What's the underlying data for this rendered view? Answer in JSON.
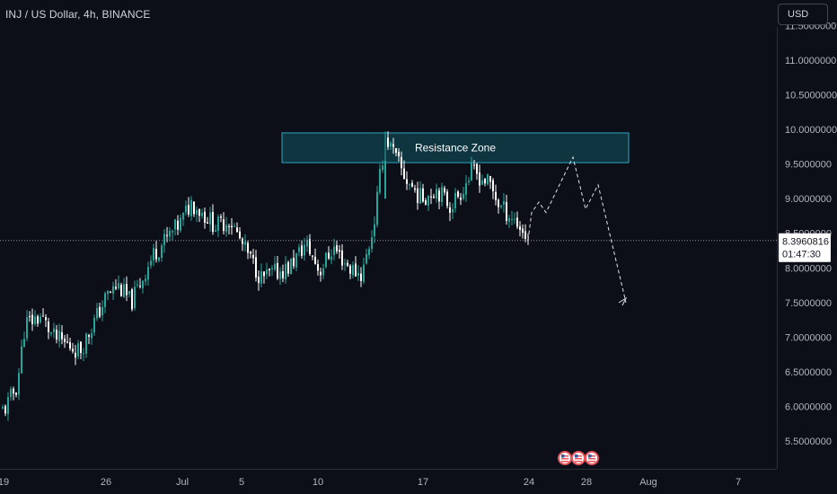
{
  "header": {
    "symbol_title": "INJ / US Dollar, 4h, BINANCE",
    "currency_label": "USD"
  },
  "price_badge": {
    "price": "8.3960816",
    "countdown": "01:47:30"
  },
  "colors": {
    "background": "#0c0e18",
    "candle_up": "#26a69a",
    "candle_down": "#ffffff",
    "zone_fill": "#0f3540",
    "zone_border": "#2aa7bf",
    "axis_text": "#b2b5be",
    "event_icon": "#e8525a"
  },
  "chart_data": {
    "type": "candlestick",
    "symbol": "INJ / US Dollar",
    "interval": "4h",
    "exchange": "BINANCE",
    "ylim": [
      5.15,
      11.5
    ],
    "y_ticks": [
      "5.5000000",
      "6.0000000",
      "6.5000000",
      "7.0000000",
      "7.5000000",
      "8.0000000",
      "8.5000000",
      "9.0000000",
      "9.5000000",
      "10.0000000",
      "10.5000000",
      "11.0000000",
      "11.5000000"
    ],
    "x_ticks": [
      "19",
      "26",
      "Jul",
      "5",
      "10",
      "17",
      "24",
      "28",
      "Aug",
      "7"
    ],
    "current_price": 8.3960816,
    "price_path": [
      [
        "19",
        5.95
      ],
      [
        "21",
        6.3
      ],
      [
        "22",
        7.2
      ],
      [
        "23",
        7.3
      ],
      [
        "24",
        7.0
      ],
      [
        "25",
        6.8
      ],
      [
        "26",
        7.6
      ],
      [
        "27",
        7.75
      ],
      [
        "28",
        7.5
      ],
      [
        "29",
        8.2
      ],
      [
        "Jul",
        8.65
      ],
      [
        "Jul",
        8.95
      ],
      [
        "2",
        8.6
      ],
      [
        "4",
        8.7
      ],
      [
        "5",
        8.3
      ],
      [
        "6",
        7.85
      ],
      [
        "8",
        8.0
      ],
      [
        "9",
        8.35
      ],
      [
        "10",
        7.95
      ],
      [
        "11",
        8.3
      ],
      [
        "12",
        8.0
      ],
      [
        "13",
        7.9
      ],
      [
        "14",
        8.6
      ],
      [
        "14",
        9.9
      ],
      [
        "15",
        9.3
      ],
      [
        "16",
        9.0
      ],
      [
        "17",
        9.15
      ],
      [
        "18",
        8.9
      ],
      [
        "19",
        9.1
      ],
      [
        "20",
        9.4
      ],
      [
        "21",
        9.2
      ],
      [
        "22",
        8.9
      ],
      [
        "23",
        8.7
      ],
      [
        "24",
        8.4
      ]
    ],
    "resistance_zone": {
      "label": "Resistance Zone",
      "low": 9.52,
      "high": 9.95
    },
    "projection": [
      [
        "24",
        8.4
      ],
      [
        "24",
        8.8
      ],
      [
        "25",
        8.95
      ],
      [
        "25",
        8.8
      ],
      [
        "27",
        9.6
      ],
      [
        "28",
        8.85
      ],
      [
        "28",
        9.2
      ],
      [
        "Aug",
        7.5
      ]
    ],
    "event_markers": 3,
    "grid": false
  }
}
